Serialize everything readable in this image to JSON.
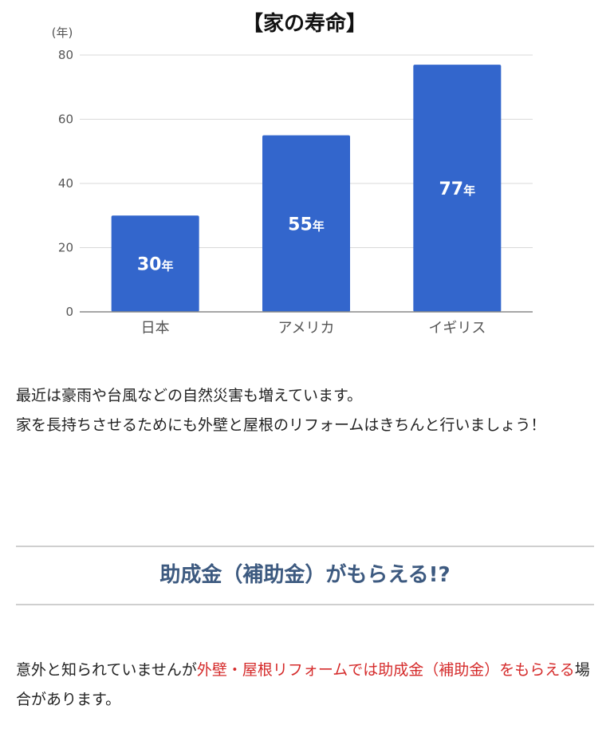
{
  "chart_data": {
    "type": "bar",
    "title": "【家の寿命】",
    "y_unit_label": "(年)",
    "categories": [
      "日本",
      "アメリカ",
      "イギリス"
    ],
    "values": [
      30,
      55,
      77
    ],
    "data_labels": [
      "30",
      "55",
      "77"
    ],
    "data_label_suffix": "年",
    "yticks": [
      "0",
      "20",
      "40",
      "60",
      "80"
    ],
    "ylim": [
      0,
      80
    ],
    "grid": true,
    "bar_color": "#3366cc"
  },
  "paragraph1": {
    "line1": "最近は豪雨や台風などの自然災害も増えています。",
    "line2": "家を長持ちさせるためにも外壁と屋根のリフォームはきちんと行いましょう！"
  },
  "section": {
    "heading": "助成金（補助金）がもらえる!?"
  },
  "paragraph2": {
    "intro": "意外と知られていませんが",
    "highlight": "外壁・屋根リフォームでは助成金（補助金）をもらえる",
    "outro": "場合があります。",
    "highlight_color": "#d52b2b"
  }
}
